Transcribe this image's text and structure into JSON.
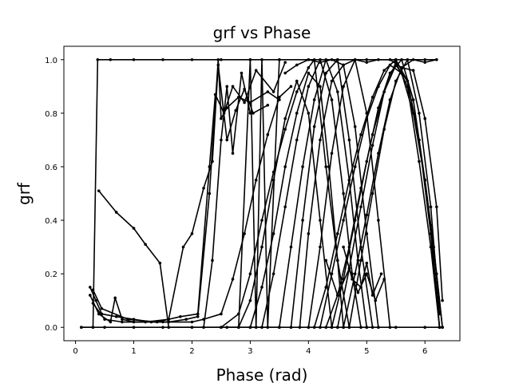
{
  "chart_data": {
    "type": "line",
    "title": "grf vs Phase",
    "xlabel": "Phase (rad)",
    "ylabel": "grf",
    "xlim": [
      -0.2,
      6.6
    ],
    "ylim": [
      -0.05,
      1.05
    ],
    "xticks": [
      0,
      1,
      2,
      3,
      4,
      5,
      6
    ],
    "yticks": [
      0.0,
      0.2,
      0.4,
      0.6,
      0.8,
      1.0
    ],
    "xtick_labels": [
      "0",
      "1",
      "2",
      "3",
      "4",
      "5",
      "6"
    ],
    "ytick_labels": [
      "0.0",
      "0.2",
      "0.4",
      "0.6",
      "0.8",
      "1.0"
    ],
    "grid": false,
    "legend": "none",
    "marker": "dot",
    "line_color": "#000000",
    "series": [
      {
        "x": [
          0.1,
          0.3,
          0.38,
          0.6,
          1.0,
          1.5,
          2.0,
          2.5,
          3.0,
          3.5,
          4.0,
          4.5,
          5.0,
          5.5,
          6.0,
          6.2
        ],
        "y": [
          0.0,
          0.0,
          1.0,
          1.0,
          1.0,
          1.0,
          1.0,
          1.0,
          1.0,
          1.0,
          1.0,
          1.0,
          1.0,
          1.0,
          1.0,
          1.0
        ]
      },
      {
        "x": [
          0.4,
          0.7,
          1.0,
          1.2,
          1.45,
          1.6,
          2.0,
          2.5,
          3.0,
          3.5
        ],
        "y": [
          0.51,
          0.43,
          0.37,
          0.31,
          0.24,
          0.0,
          0.0,
          0.0,
          0.0,
          0.0
        ]
      },
      {
        "x": [
          0.25,
          0.35,
          0.45,
          0.7,
          1.0,
          1.3,
          1.6,
          1.9,
          2.1,
          2.3,
          2.45,
          2.5,
          2.6,
          2.8,
          3.0,
          3.3,
          3.5
        ],
        "y": [
          0.15,
          0.1,
          0.05,
          0.04,
          0.03,
          0.02,
          0.02,
          0.03,
          0.04,
          0.5,
          1.0,
          0.78,
          0.82,
          0.86,
          0.84,
          0.88,
          0.85
        ]
      },
      {
        "x": [
          0.25,
          0.4,
          0.6,
          0.68,
          0.8,
          1.0,
          1.5,
          2.0,
          2.2,
          2.5,
          2.7,
          2.9,
          3.1,
          3.3,
          3.5,
          3.7
        ],
        "y": [
          0.12,
          0.05,
          0.02,
          0.11,
          0.03,
          0.02,
          0.02,
          0.02,
          0.03,
          0.05,
          0.18,
          0.35,
          0.55,
          0.72,
          0.86,
          0.9
        ]
      },
      {
        "x": [
          0.3,
          0.5,
          0.8,
          1.2,
          1.6,
          1.85,
          2.0,
          2.2,
          2.35,
          2.45,
          2.6,
          2.75,
          2.9,
          3.05,
          3.3
        ],
        "y": [
          0.09,
          0.03,
          0.02,
          0.02,
          0.03,
          0.3,
          0.35,
          0.52,
          0.62,
          0.98,
          0.7,
          0.81,
          0.89,
          0.8,
          0.83
        ]
      },
      {
        "x": [
          0.3,
          0.45,
          0.9,
          1.4,
          1.8,
          2.1,
          2.3,
          2.4,
          2.55,
          2.7,
          2.9,
          3.1,
          3.4,
          3.6
        ],
        "y": [
          0.14,
          0.07,
          0.03,
          0.02,
          0.04,
          0.05,
          0.6,
          0.87,
          0.8,
          0.9,
          0.84,
          0.96,
          0.88,
          0.99
        ]
      },
      {
        "x": [
          2.5,
          2.8,
          3.0,
          3.2,
          3.4,
          3.6,
          3.8,
          4.0,
          4.1,
          4.3,
          4.5,
          4.7
        ],
        "y": [
          0.0,
          0.05,
          0.2,
          0.4,
          0.58,
          0.74,
          0.88,
          0.97,
          1.0,
          0.6,
          0.25,
          0.0
        ]
      },
      {
        "x": [
          3.0,
          3.2,
          3.4,
          3.6,
          3.8,
          4.0,
          4.2,
          4.35,
          4.5,
          4.6
        ],
        "y": [
          0.0,
          0.15,
          0.35,
          0.6,
          0.8,
          0.95,
          0.9,
          0.6,
          0.25,
          0.0
        ]
      },
      {
        "x": [
          3.2,
          3.4,
          3.6,
          3.8,
          4.0,
          4.2,
          4.4,
          4.6,
          4.75,
          4.9
        ],
        "y": [
          0.0,
          0.2,
          0.45,
          0.7,
          0.9,
          1.0,
          0.85,
          0.5,
          0.2,
          0.0
        ]
      },
      {
        "x": [
          3.5,
          3.7,
          3.9,
          4.1,
          4.3,
          4.5,
          4.7,
          4.85,
          5.0
        ],
        "y": [
          0.0,
          0.3,
          0.6,
          0.85,
          1.0,
          0.88,
          0.55,
          0.25,
          0.0
        ]
      },
      {
        "x": [
          3.7,
          3.9,
          4.1,
          4.3,
          4.5,
          4.7,
          4.9,
          5.1
        ],
        "y": [
          0.0,
          0.4,
          0.75,
          0.95,
          1.0,
          0.7,
          0.3,
          0.0
        ]
      },
      {
        "x": [
          3.85,
          4.0,
          4.2,
          4.4,
          4.6,
          4.8,
          5.0,
          5.2
        ],
        "y": [
          0.0,
          0.35,
          0.7,
          0.92,
          0.98,
          0.75,
          0.35,
          0.0
        ]
      },
      {
        "x": [
          4.0,
          4.2,
          4.4,
          4.6,
          4.8,
          5.0,
          5.2,
          5.4
        ],
        "y": [
          0.0,
          0.3,
          0.65,
          0.9,
          1.0,
          0.8,
          0.4,
          0.0
        ]
      },
      {
        "x": [
          4.1,
          4.3,
          4.5,
          4.7,
          4.9,
          5.1,
          5.3,
          5.5,
          5.7,
          5.9,
          6.1,
          6.25
        ],
        "y": [
          0.0,
          0.15,
          0.35,
          0.55,
          0.72,
          0.86,
          0.96,
          1.0,
          0.92,
          0.7,
          0.35,
          0.0
        ]
      },
      {
        "x": [
          4.2,
          4.4,
          4.6,
          4.8,
          5.0,
          5.2,
          5.4,
          5.6,
          5.8,
          6.0,
          6.15,
          6.3
        ],
        "y": [
          0.0,
          0.2,
          0.4,
          0.6,
          0.78,
          0.9,
          0.98,
          0.95,
          0.8,
          0.55,
          0.3,
          0.0
        ]
      },
      {
        "x": [
          4.3,
          4.5,
          4.7,
          4.9,
          5.1,
          5.3,
          5.5,
          5.7,
          5.9,
          6.1,
          6.25
        ],
        "y": [
          0.0,
          0.12,
          0.3,
          0.52,
          0.72,
          0.88,
          0.99,
          0.9,
          0.62,
          0.3,
          0.0
        ]
      },
      {
        "x": [
          4.4,
          4.6,
          4.8,
          5.0,
          5.2,
          5.4,
          5.6,
          5.8,
          6.0,
          6.2,
          6.3
        ],
        "y": [
          0.0,
          0.18,
          0.4,
          0.62,
          0.82,
          0.95,
          1.0,
          0.85,
          0.55,
          0.2,
          0.0
        ]
      },
      {
        "x": [
          4.5,
          4.7,
          4.9,
          5.1,
          5.3,
          5.5,
          5.7,
          5.9,
          6.1,
          6.25
        ],
        "y": [
          0.0,
          0.22,
          0.45,
          0.68,
          0.88,
          0.98,
          0.92,
          0.7,
          0.38,
          0.0
        ]
      },
      {
        "x": [
          4.6,
          4.8,
          5.0,
          5.2,
          5.4,
          5.6,
          5.8,
          6.0,
          6.2,
          6.3
        ],
        "y": [
          0.0,
          0.2,
          0.42,
          0.65,
          0.85,
          0.97,
          0.96,
          0.78,
          0.45,
          0.1
        ]
      },
      {
        "x": [
          4.7,
          4.9,
          5.1,
          5.3,
          5.5,
          5.7,
          5.9,
          6.1,
          6.25
        ],
        "y": [
          0.0,
          0.25,
          0.5,
          0.74,
          0.92,
          1.0,
          0.8,
          0.45,
          0.05
        ]
      },
      {
        "x": [
          4.3,
          4.5,
          4.7,
          4.85,
          5.0,
          5.15,
          5.3
        ],
        "y": [
          0.25,
          0.12,
          0.22,
          0.13,
          0.2,
          0.1,
          0.18
        ]
      },
      {
        "x": [
          4.6,
          4.75,
          4.9,
          5.0,
          5.1,
          5.25
        ],
        "y": [
          0.3,
          0.18,
          0.15,
          0.24,
          0.12,
          0.2
        ]
      },
      {
        "x": [
          3.6,
          3.8,
          4.0,
          4.2,
          4.4,
          4.6,
          4.8,
          5.0,
          5.2,
          5.4,
          5.6,
          5.8,
          6.0,
          6.2
        ],
        "y": [
          0.95,
          0.98,
          1.0,
          0.99,
          1.0,
          0.98,
          1.0,
          0.99,
          1.0,
          1.0,
          0.97,
          1.0,
          0.99,
          1.0
        ]
      },
      {
        "x": [
          2.6,
          2.8,
          3.0,
          3.2,
          3.4,
          3.6,
          3.8,
          4.0,
          4.2,
          4.4
        ],
        "y": [
          0.0,
          0.0,
          0.1,
          0.3,
          0.55,
          0.78,
          0.92,
          0.8,
          0.4,
          0.0
        ]
      },
      {
        "x": [
          2.8,
          3.0,
          3.1,
          3.2,
          3.3,
          3.5
        ],
        "y": [
          0.0,
          1.0,
          0.0,
          1.0,
          0.0,
          1.0
        ]
      },
      {
        "x": [
          2.2,
          2.35,
          2.5,
          2.6,
          2.7,
          2.85,
          3.0
        ],
        "y": [
          0.0,
          0.25,
          0.7,
          0.9,
          0.65,
          0.95,
          0.8
        ]
      },
      {
        "x": [
          0.1,
          0.5,
          1.0,
          1.5,
          2.0,
          2.5,
          3.0,
          3.5,
          4.0,
          4.5,
          5.0,
          5.5,
          6.0,
          6.3
        ],
        "y": [
          0.0,
          0.0,
          0.0,
          0.0,
          0.0,
          0.0,
          0.0,
          0.0,
          0.0,
          0.0,
          0.0,
          0.0,
          0.0,
          0.0
        ]
      }
    ]
  }
}
